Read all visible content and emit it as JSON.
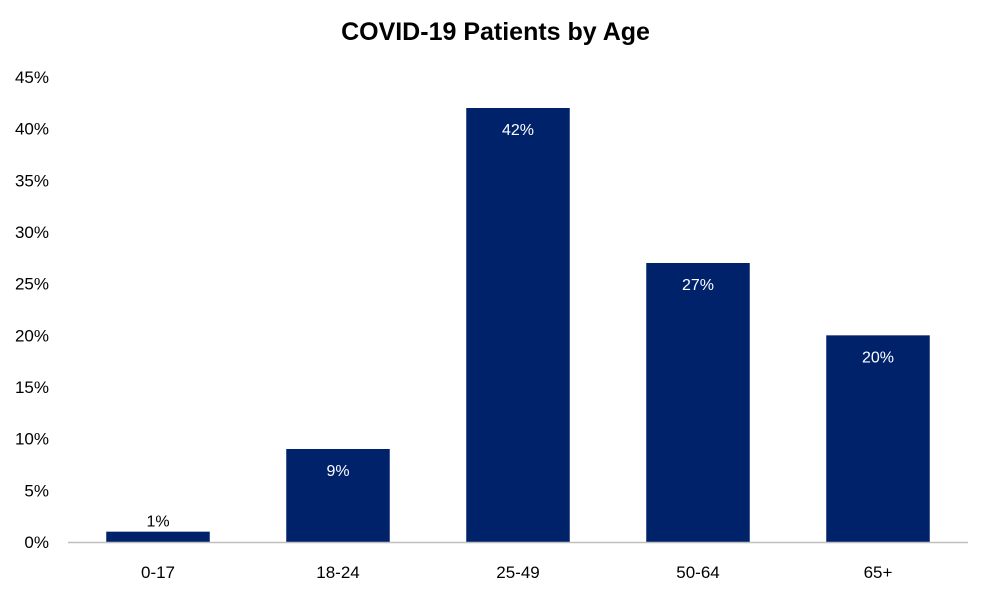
{
  "chart_data": {
    "type": "bar",
    "title": "COVID-19 Patients by Age",
    "xlabel": "",
    "ylabel": "",
    "categories": [
      "0-17",
      "18-24",
      "25-49",
      "50-64",
      "65+"
    ],
    "values": [
      1,
      9,
      42,
      27,
      20
    ],
    "data_labels": [
      "1%",
      "9%",
      "42%",
      "27%",
      "20%"
    ],
    "ylim": [
      0,
      45
    ],
    "yticks": [
      0,
      5,
      10,
      15,
      20,
      25,
      30,
      35,
      40,
      45
    ],
    "ytick_labels": [
      "0%",
      "5%",
      "10%",
      "15%",
      "20%",
      "25%",
      "30%",
      "35%",
      "40%",
      "45%"
    ],
    "grid": false,
    "legend": "none",
    "colors": {
      "bar": "#00226b",
      "axis": "#bfbfbf",
      "label_inside": "#ffffff",
      "label_outside": "#000000"
    }
  }
}
